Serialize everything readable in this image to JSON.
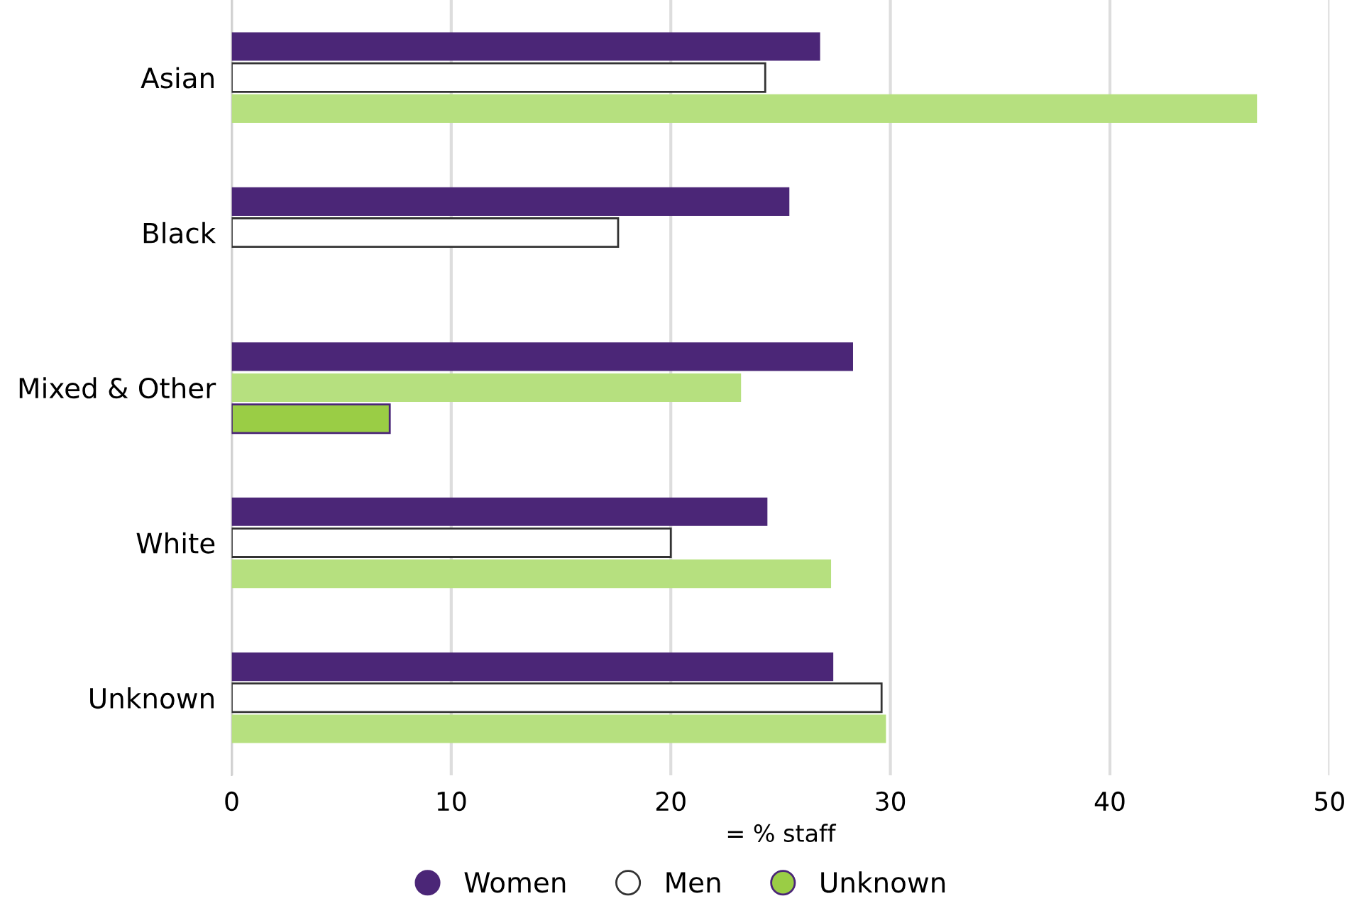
{
  "chart_data": {
    "type": "bar",
    "orientation": "horizontal",
    "xlabel": "= % staff",
    "categories": [
      "Asian",
      "Black",
      "Mixed & Other",
      "White",
      "Unknown"
    ],
    "series": [
      {
        "name": "Women",
        "color": "#4b2677",
        "colors": [
          "#4b2677",
          "#4b2677",
          "#4b2677",
          "#4b2677",
          "#4b2677"
        ],
        "values": [
          26.8,
          25.4,
          28.3,
          24.4,
          27.4
        ]
      },
      {
        "name": "Men",
        "color": "#ffffff",
        "colors": [
          "#ffffff",
          "#ffffff",
          "#b6e07f",
          "#ffffff",
          "#ffffff"
        ],
        "values": [
          24.3,
          17.6,
          23.2,
          20.0,
          29.6
        ]
      },
      {
        "name": "Unknown",
        "color": "#9acd45",
        "colors": [
          "#b6e07f",
          null,
          "#9acd45",
          "#b6e07f",
          "#b6e07f"
        ],
        "values": [
          46.7,
          null,
          7.2,
          27.3,
          29.8
        ]
      }
    ],
    "xlim": [
      0,
      50
    ],
    "xticks": [
      0,
      10,
      20,
      30,
      40,
      50
    ],
    "grid": "x",
    "legend": "bottom"
  }
}
